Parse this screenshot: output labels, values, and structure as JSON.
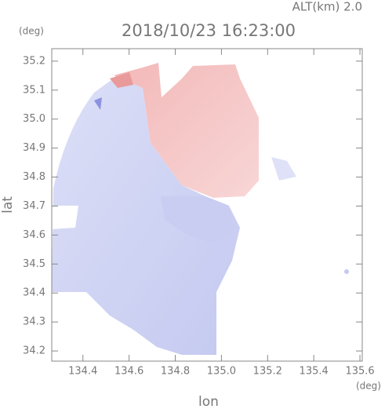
{
  "chart_data": {
    "type": "image",
    "title": "2018/10/23 16:23:00",
    "subtitle": "ALT(km) 2.0",
    "xlabel": "lon",
    "ylabel": "lat",
    "xunit": "(deg)",
    "yunit": "(deg)",
    "xlim": [
      134.265,
      135.61
    ],
    "ylim": [
      34.165,
      35.243
    ],
    "xticks": [
      134.4,
      134.6,
      134.8,
      {
        "value": 135.0,
        "label": "135.0"
      },
      135.2,
      135.4,
      135.6
    ],
    "yticks": [
      34.2,
      34.3,
      34.4,
      34.5,
      34.6,
      34.7,
      34.8,
      34.9,
      {
        "value": 35.0,
        "label": "35.0"
      },
      35.1,
      35.2
    ]
  }
}
